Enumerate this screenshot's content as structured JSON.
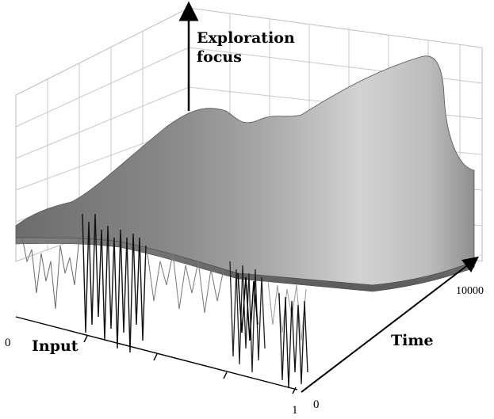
{
  "chart_data": {
    "type": "surface",
    "axes": {
      "vertical_label_line1": "Exploration",
      "vertical_label_line2": "focus",
      "input_label": "Input",
      "time_label": "Time",
      "input_ticks": {
        "start": "0",
        "end": "1"
      },
      "time_ticks": {
        "start": "0",
        "end": "10000"
      }
    },
    "surface": {
      "description_series": "Exploration focus over input (0–1) and time (0–10000)",
      "front_profile": [
        [
          0.0,
          0.0
        ],
        [
          0.05,
          0.06
        ],
        [
          0.1,
          0.02
        ],
        [
          0.2,
          0.05
        ],
        [
          0.3,
          0.03
        ],
        [
          0.4,
          0.05
        ],
        [
          0.5,
          0.02
        ],
        [
          0.6,
          0.04
        ],
        [
          0.7,
          0.03
        ],
        [
          0.8,
          0.04
        ],
        [
          0.9,
          0.02
        ],
        [
          1.0,
          0.0
        ]
      ],
      "back_profile": [
        [
          0.0,
          0.0
        ],
        [
          0.1,
          0.04
        ],
        [
          0.22,
          0.18
        ],
        [
          0.35,
          0.1
        ],
        [
          0.45,
          0.28
        ],
        [
          0.55,
          0.18
        ],
        [
          0.65,
          0.42
        ],
        [
          0.75,
          0.6
        ],
        [
          0.85,
          0.66
        ],
        [
          0.95,
          0.75
        ],
        [
          1.0,
          0.55
        ]
      ]
    },
    "grid": true
  }
}
